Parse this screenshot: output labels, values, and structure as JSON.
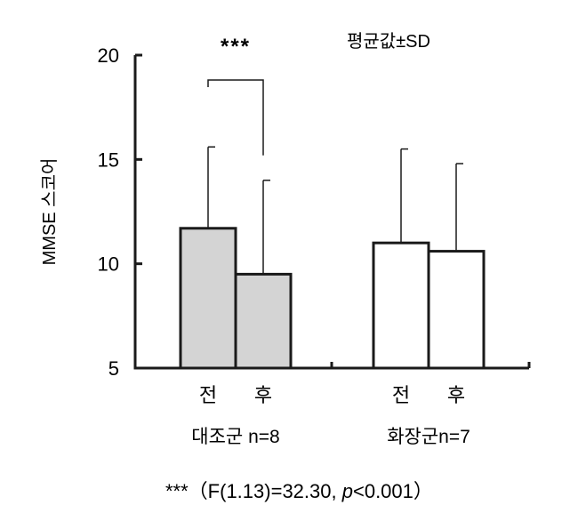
{
  "chart_data": {
    "type": "bar",
    "ylabel": "MMSE 스코어",
    "ylim": [
      5,
      20
    ],
    "yticks": [
      5,
      10,
      15,
      20
    ],
    "legend_note": "평균값±SD",
    "groups": [
      {
        "name": "대조군 n=8",
        "conditions": [
          "전",
          "후"
        ],
        "means": [
          11.7,
          9.5
        ],
        "sd": [
          3.9,
          4.5
        ],
        "fill": "#d4d4d4"
      },
      {
        "name": "화장군n=7",
        "conditions": [
          "전",
          "후"
        ],
        "means": [
          11.0,
          10.6
        ],
        "sd": [
          4.5,
          4.2
        ],
        "fill": "#ffffff"
      }
    ],
    "significance": {
      "group": 0,
      "label": "***"
    },
    "stats_note": {
      "prefix": "***（F(1.13)=32.30, ",
      "p": "p",
      "suffix": "<0.001）"
    }
  },
  "colors": {
    "axis": "#1a1a1a",
    "control_fill": "#d4d4d4",
    "treatment_fill": "#ffffff"
  }
}
